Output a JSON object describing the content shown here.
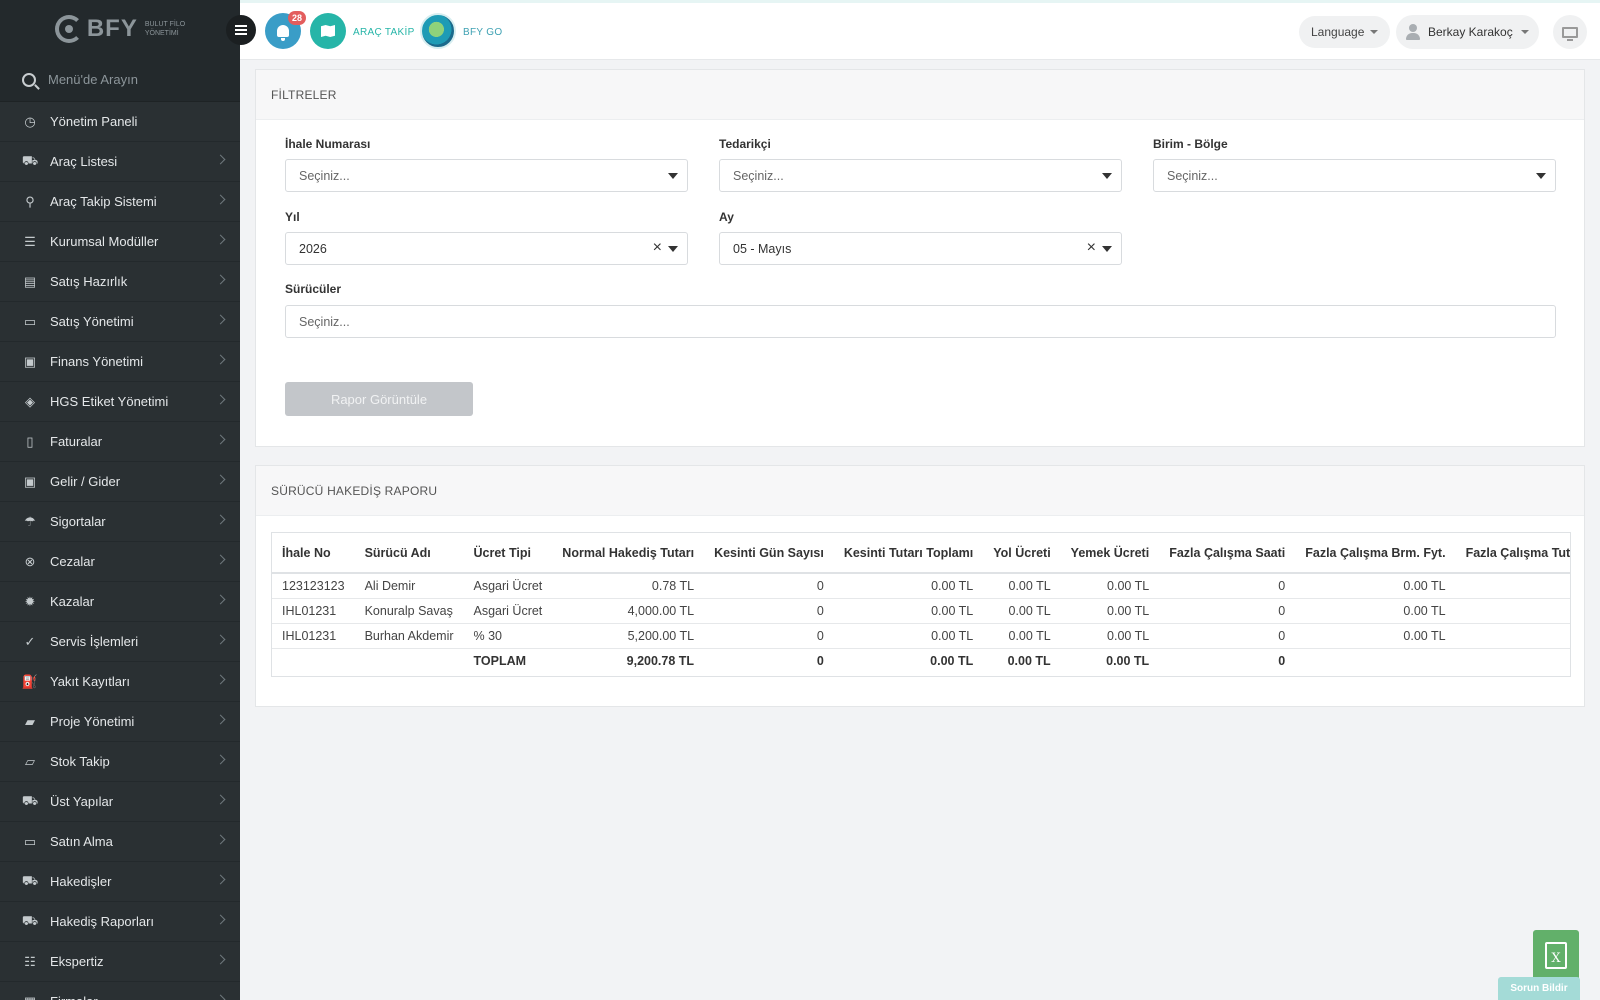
{
  "brand": {
    "name": "BFY",
    "subtitle_line1": "BULUT FİLO",
    "subtitle_line2": "YÖNETİMİ"
  },
  "sidebar": {
    "search_placeholder": "Menü'de Arayın",
    "items": [
      {
        "label": "Yönetim Paneli",
        "icon": "dashboard-icon",
        "glyph": "◷",
        "has_children": false
      },
      {
        "label": "Araç Listesi",
        "icon": "car-icon",
        "glyph": "⛟",
        "has_children": true
      },
      {
        "label": "Araç Takip Sistemi",
        "icon": "map-pin-icon",
        "glyph": "⚲",
        "has_children": true
      },
      {
        "label": "Kurumsal Modüller",
        "icon": "server-icon",
        "glyph": "☰",
        "has_children": true
      },
      {
        "label": "Satış Hazırlık",
        "icon": "book-icon",
        "glyph": "▤",
        "has_children": true
      },
      {
        "label": "Satış Yönetimi",
        "icon": "card-icon",
        "glyph": "▭",
        "has_children": true
      },
      {
        "label": "Finans Yönetimi",
        "icon": "money-icon",
        "glyph": "▣",
        "has_children": true
      },
      {
        "label": "HGS Etiket Yönetimi",
        "icon": "tag-icon",
        "glyph": "◈",
        "has_children": true
      },
      {
        "label": "Faturalar",
        "icon": "file-icon",
        "glyph": "▯",
        "has_children": true
      },
      {
        "label": "Gelir / Gider",
        "icon": "cash-icon",
        "glyph": "▣",
        "has_children": true
      },
      {
        "label": "Sigortalar",
        "icon": "umbrella-icon",
        "glyph": "☂",
        "has_children": true
      },
      {
        "label": "Cezalar",
        "icon": "cancel-circle-icon",
        "glyph": "⊗",
        "has_children": true
      },
      {
        "label": "Kazalar",
        "icon": "accident-icon",
        "glyph": "✹",
        "has_children": true
      },
      {
        "label": "Servis İşlemleri",
        "icon": "check-circle-icon",
        "glyph": "✓",
        "has_children": true
      },
      {
        "label": "Yakıt Kayıtları",
        "icon": "fuel-icon",
        "glyph": "⛽",
        "has_children": true
      },
      {
        "label": "Proje Yönetimi",
        "icon": "briefcase-icon",
        "glyph": "▰",
        "has_children": true
      },
      {
        "label": "Stok Takip",
        "icon": "inbox-icon",
        "glyph": "▱",
        "has_children": true
      },
      {
        "label": "Üst Yapılar",
        "icon": "truck-icon",
        "glyph": "⛟",
        "has_children": true
      },
      {
        "label": "Satın Alma",
        "icon": "credit-card-icon",
        "glyph": "▭",
        "has_children": true
      },
      {
        "label": "Hakedişler",
        "icon": "truck-icon",
        "glyph": "⛟",
        "has_children": true
      },
      {
        "label": "Hakediş Raporları",
        "icon": "truck-icon",
        "glyph": "⛟",
        "has_children": true
      },
      {
        "label": "Ekspertiz",
        "icon": "list-icon",
        "glyph": "☷",
        "has_children": true
      },
      {
        "label": "Firmalar",
        "icon": "building-icon",
        "glyph": "▦",
        "has_children": true
      }
    ]
  },
  "topbar": {
    "notification_count": "28",
    "arac_takip_label": "ARAÇ TAKİP",
    "bfy_go_label": "BFY GO",
    "language_label": "Language",
    "user_name": "Berkay Karakoç"
  },
  "filters": {
    "title": "FİLTRELER",
    "ihale_label": "İhale Numarası",
    "ihale_placeholder": "Seçiniz...",
    "tedarikci_label": "Tedarikçi",
    "tedarikci_placeholder": "Seçiniz...",
    "birim_label": "Birim - Bölge",
    "birim_placeholder": "Seçiniz...",
    "yil_label": "Yıl",
    "yil_value": "2026",
    "ay_label": "Ay",
    "ay_value": "05 - Mayıs",
    "suruculer_label": "Sürücüler",
    "suruculer_placeholder": "Seçiniz...",
    "submit_label": "Rapor Görüntüle"
  },
  "report": {
    "title": "SÜRÜCÜ HAKEDİŞ RAPORU",
    "columns": [
      "İhale No",
      "Sürücü Adı",
      "Ücret Tipi",
      "Normal Hakediş Tutarı",
      "Kesinti Gün Sayısı",
      "Kesinti Tutarı Toplamı",
      "Yol Ücreti",
      "Yemek Ücreti",
      "Fazla Çalışma Saati",
      "Fazla Çalışma Brm. Fyt.",
      "Fazla Çalışma Tutarı"
    ],
    "rows": [
      [
        "123123123",
        "Ali Demir",
        "Asgari Ücret",
        "0.78 TL",
        "0",
        "0.00 TL",
        "0.00 TL",
        "0.00 TL",
        "0",
        "0.00 TL",
        ""
      ],
      [
        "IHL01231",
        "Konuralp Savaş",
        "Asgari Ücret",
        "4,000.00 TL",
        "0",
        "0.00 TL",
        "0.00 TL",
        "0.00 TL",
        "0",
        "0.00 TL",
        ""
      ],
      [
        "IHL01231",
        "Burhan Akdemir",
        "% 30",
        "5,200.00 TL",
        "0",
        "0.00 TL",
        "0.00 TL",
        "0.00 TL",
        "0",
        "0.00 TL",
        ""
      ]
    ],
    "total": [
      "",
      "",
      "TOPLAM",
      "9,200.78 TL",
      "0",
      "0.00 TL",
      "0.00 TL",
      "0.00 TL",
      "0",
      "",
      ""
    ]
  },
  "floating": {
    "excel_glyph": "X",
    "report_issue_label": "Sorun Bildir"
  }
}
